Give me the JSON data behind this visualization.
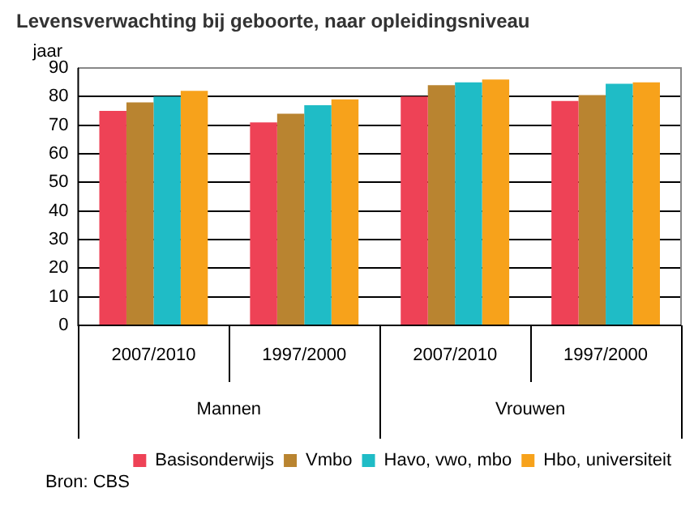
{
  "chart_data": {
    "type": "bar",
    "title": "Levensverwachting bij geboorte, naar opleidingsniveau",
    "ylabel": "jaar",
    "categories": [
      "2007/2010",
      "1997/2000",
      "2007/2010",
      "1997/2000"
    ],
    "series": [
      {
        "name": "Basisonderwijs",
        "color": "#ee4256",
        "values": [
          75,
          71,
          80,
          78.5
        ]
      },
      {
        "name": "Vmbo",
        "color": "#b98430",
        "values": [
          78,
          74,
          84,
          80.5
        ]
      },
      {
        "name": "Havo, vwo, mbo",
        "color": "#1fbcc6",
        "values": [
          80,
          77,
          85,
          84.5
        ]
      },
      {
        "name": "Hbo, universiteit",
        "color": "#f7a21b",
        "values": [
          82,
          79,
          86,
          85
        ]
      }
    ],
    "ylim": [
      0,
      90
    ],
    "yticks": [
      0,
      10,
      20,
      30,
      40,
      50,
      60,
      70,
      80,
      90
    ],
    "grid": "y",
    "legend": "bottom",
    "annotations": [
      "Mannen",
      "Vrouwen",
      "Bron: CBS"
    ]
  }
}
